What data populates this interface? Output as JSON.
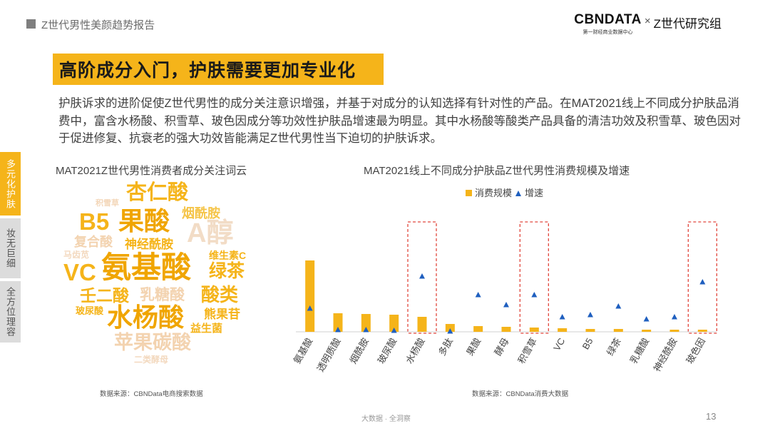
{
  "header": {
    "title": "Z世代男性美颜趋势报告"
  },
  "logo": {
    "main": "CBNDATA",
    "sub": "第一财经商业数据中心",
    "times": "×",
    "partner": "Z世代研究组"
  },
  "side_tabs": [
    {
      "label": "多元化护肤",
      "active": true
    },
    {
      "label": "妆无巨细",
      "active": false
    },
    {
      "label": "全方位理容",
      "active": false
    }
  ],
  "headline": "高阶成分入门，护肤需要更加专业化",
  "paragraph": "护肤诉求的进阶促使Z世代男性的成分关注意识增强，并基于对成分的认知选择有针对性的产品。在MAT2021线上不同成分护肤品消费中，富含水杨酸、积雪草、玻色因成分等功效性护肤品增速最为明显。其中水杨酸等酸类产品具备的清洁功效及积雪草、玻色因对于促进修复、抗衰老的强大功效皆能满足Z世代男性当下迫切的护肤诉求。",
  "word_cloud": {
    "title": "MAT2021Z世代男性消费者成分关注词云",
    "source": "数据来源：CBNData电商搜索数据",
    "words": [
      {
        "text": "杏仁酸",
        "color": "#f5b41a"
      },
      {
        "text": "积雪草",
        "color": "#f3d6b8"
      },
      {
        "text": "烟酰胺",
        "color": "#f5c54a"
      },
      {
        "text": "B5",
        "color": "#f5b41a"
      },
      {
        "text": "果酸",
        "color": "#f0a500"
      },
      {
        "text": "A醇",
        "color": "#f2dcc6"
      },
      {
        "text": "复合酸",
        "color": "#f3d3b0"
      },
      {
        "text": "神经酰胺",
        "color": "#f5b41a"
      },
      {
        "text": "马齿苋",
        "color": "#f3d9bf"
      },
      {
        "text": "维生素C",
        "color": "#f5b41a"
      },
      {
        "text": "VC",
        "color": "#f5b41a"
      },
      {
        "text": "氨基酸",
        "color": "#f0a500"
      },
      {
        "text": "绿茶",
        "color": "#f5b41a"
      },
      {
        "text": "壬二酸",
        "color": "#f5b41a"
      },
      {
        "text": "乳糖酸",
        "color": "#f3d3b0"
      },
      {
        "text": "酸类",
        "color": "#f5b41a"
      },
      {
        "text": "玻尿酸",
        "color": "#f5b41a"
      },
      {
        "text": "水杨酸",
        "color": "#f0a500"
      },
      {
        "text": "熊果苷",
        "color": "#f5b41a"
      },
      {
        "text": "益生菌",
        "color": "#f5b41a"
      },
      {
        "text": "苹果碳酸",
        "color": "#f3d3b0"
      },
      {
        "text": "二类酵母",
        "color": "#f3d9bf"
      }
    ]
  },
  "chart": {
    "title": "MAT2021线上不同成分护肤品Z世代男性消费规模及增速",
    "source": "数据来源：CBNData消费大数据",
    "legend": {
      "bar_label": "消费规模",
      "triangle_label": "增速"
    },
    "bar_color": "#f5b41a",
    "triangle_color": "#1f5fbf",
    "highlight_color": "#e2483d"
  },
  "chart_data": {
    "type": "bar",
    "categories": [
      "氨基酸",
      "透明质酸",
      "烟酰胺",
      "玻尿酸",
      "水杨酸",
      "多肽",
      "果酸",
      "酵母",
      "积雪草",
      "VC",
      "B5",
      "绿茶",
      "乳糖酸",
      "神经酰胺",
      "玻色因"
    ],
    "series": [
      {
        "name": "消费规模",
        "type": "bar",
        "values": [
          100,
          26,
          25,
          24,
          21,
          11,
          8,
          7,
          6,
          5,
          4,
          4,
          3,
          3,
          3
        ]
      },
      {
        "name": "增速",
        "type": "scatter",
        "values": [
          33,
          3,
          3,
          2,
          78,
          1,
          52,
          38,
          52,
          21,
          24,
          36,
          18,
          21,
          70
        ]
      }
    ],
    "highlighted": [
      "水杨酸",
      "积雪草",
      "玻色因"
    ],
    "ylim": [
      0,
      100
    ],
    "legend_position": "top-center"
  },
  "footer": {
    "text": "大数据 · 全洞察",
    "page_number": "13"
  }
}
